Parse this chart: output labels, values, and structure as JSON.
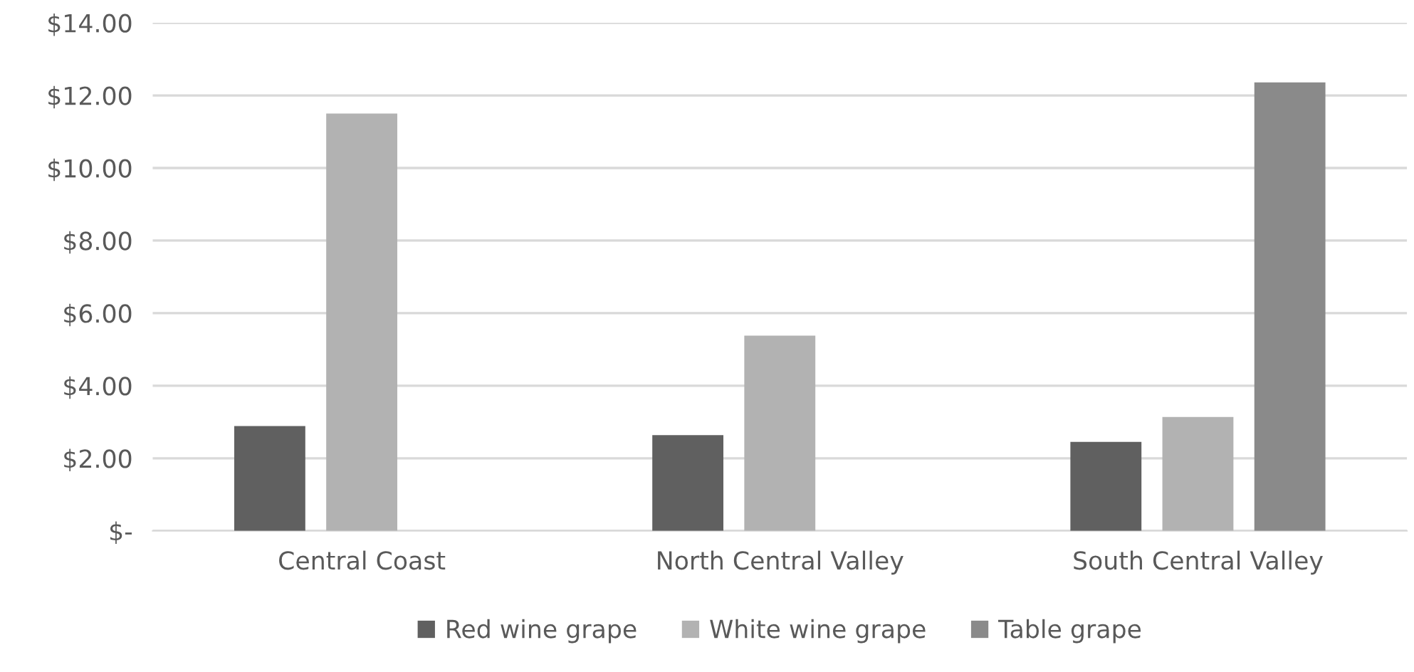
{
  "chart_data": {
    "type": "bar",
    "categories": [
      "Central Coast",
      "North Central Valley",
      "South Central Valley"
    ],
    "series": [
      {
        "name": "Red wine grape",
        "color": "#606060",
        "values": [
          2.89,
          2.64,
          2.45
        ]
      },
      {
        "name": "White wine grape",
        "color": "#b2b2b2",
        "values": [
          11.5,
          5.38,
          3.14
        ]
      },
      {
        "name": "Table grape",
        "color": "#8a8a8a",
        "values": [
          null,
          null,
          12.36
        ]
      }
    ],
    "ylim": [
      0,
      14
    ],
    "yticks": [
      {
        "value": 0,
        "label": "$-"
      },
      {
        "value": 2,
        "label": "$2.00"
      },
      {
        "value": 4,
        "label": "$4.00"
      },
      {
        "value": 6,
        "label": "$6.00"
      },
      {
        "value": 8,
        "label": "$8.00"
      },
      {
        "value": 10,
        "label": "$10.00"
      },
      {
        "value": 12,
        "label": "$12.00"
      },
      {
        "value": 14,
        "label": "$14.00"
      }
    ],
    "grid": "y",
    "legend": "bottom"
  }
}
